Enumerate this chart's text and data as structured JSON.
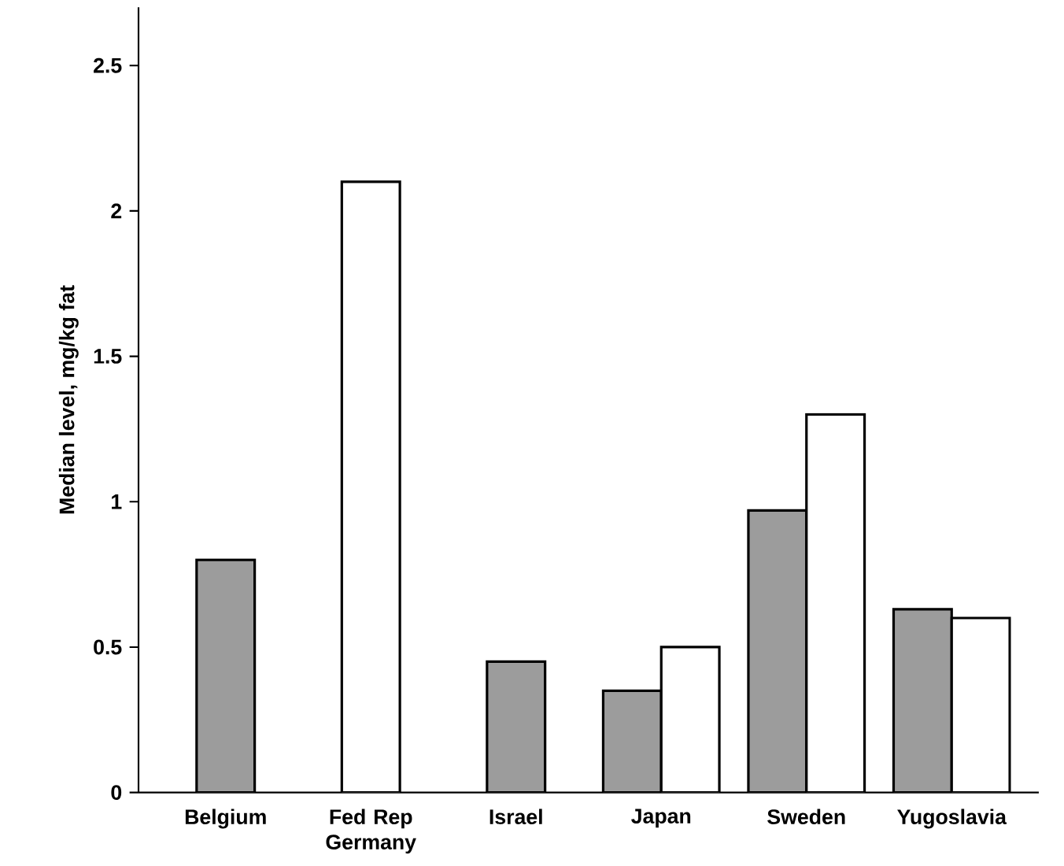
{
  "chart_data": {
    "type": "bar",
    "ylabel": "Median level, mg/kg fat",
    "categories": [
      "Belgium",
      "Fed Rep Germany",
      "Israel",
      "Japan",
      "Sweden",
      "Yugoslavia"
    ],
    "series": [
      {
        "color": "#9c9c9c",
        "values": [
          0.8,
          null,
          0.45,
          0.35,
          0.97,
          0.63
        ]
      },
      {
        "color": "#ffffff",
        "values": [
          null,
          2.1,
          null,
          0.5,
          1.3,
          0.6
        ]
      }
    ],
    "ylim": [
      0,
      2.7
    ],
    "yticks": [
      0,
      0.5,
      1,
      1.5,
      2,
      2.5
    ]
  }
}
